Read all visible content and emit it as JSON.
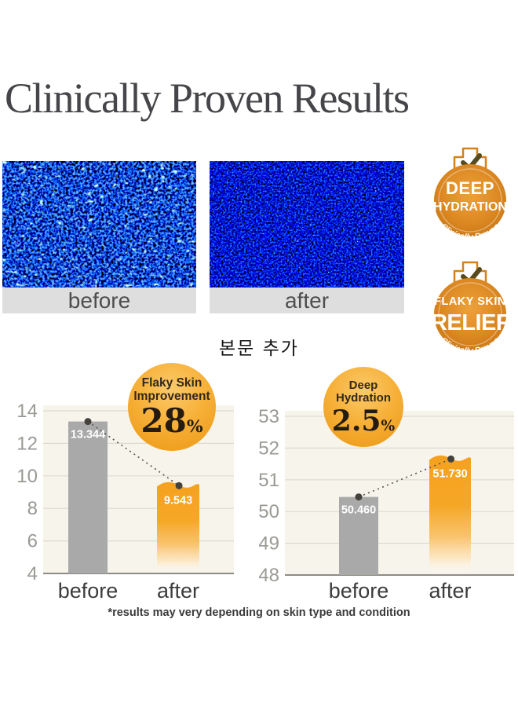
{
  "page": {
    "title": "Clinically Proven Results",
    "note": "본문 추가",
    "footnote": "*results may very depending on skin type and condition"
  },
  "comparison": {
    "before": {
      "label": "before"
    },
    "after": {
      "label": "after"
    }
  },
  "badges": [
    {
      "line1": "DEEP",
      "line2": "HYDRATION",
      "arc": "• Clinically Proven •"
    },
    {
      "line1": "FLAKY SKIN",
      "line2": "RELIEF",
      "arc": "• Clinically Proven •"
    }
  ],
  "chart_data": [
    {
      "type": "bar",
      "title": "Flaky Skin Improvement",
      "title_lines": [
        "Flaky Skin",
        "Improvement"
      ],
      "improvement": "28",
      "improvement_unit": "%",
      "categories": [
        "before",
        "after"
      ],
      "values": [
        13.344,
        9.543
      ],
      "bar_labels": [
        "13.344",
        "9.543"
      ],
      "yticks": [
        14,
        12,
        10,
        8,
        6,
        4
      ],
      "ylim": [
        4,
        14
      ],
      "grid": true,
      "trend": "down",
      "series_colors": {
        "before": "#a9a9a9",
        "after": "#f5a11f"
      }
    },
    {
      "type": "bar",
      "title": "Deep Hydration",
      "title_lines": [
        "Deep",
        "Hydration"
      ],
      "improvement": "2.5",
      "improvement_unit": "%",
      "categories": [
        "before",
        "after"
      ],
      "values": [
        50.46,
        51.73
      ],
      "bar_labels": [
        "50.460",
        "51.730"
      ],
      "yticks": [
        53,
        52,
        51,
        50,
        49,
        48
      ],
      "ylim": [
        48,
        53
      ],
      "grid": true,
      "trend": "up",
      "series_colors": {
        "before": "#a9a9a9",
        "after": "#f5a11f"
      }
    }
  ],
  "colors": {
    "accent_orange": "#e08c26",
    "bubble_orange": "#f2a524",
    "bar_gray": "#a9a9a9",
    "bar_orange": "#f5a11f",
    "plot_background": "#f7f4ec",
    "caption_background": "#dedede",
    "micrograph_blue": "#1020c0"
  }
}
